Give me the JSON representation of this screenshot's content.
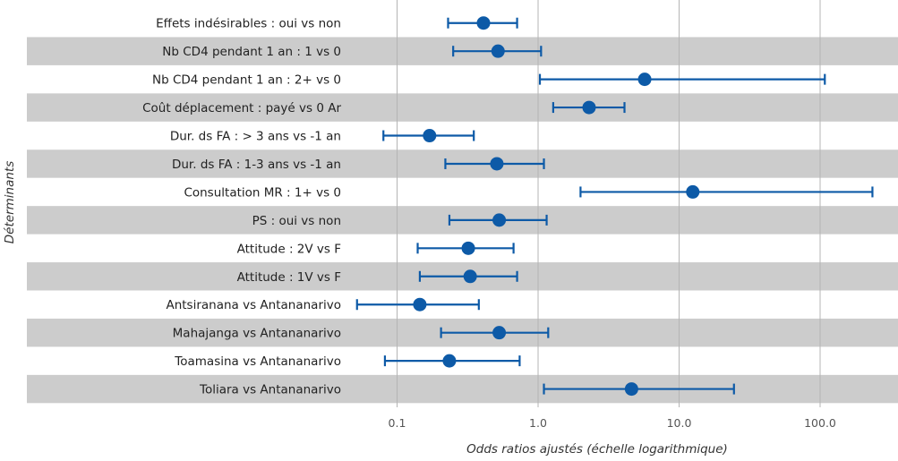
{
  "chart_data": {
    "type": "forest",
    "xlabel": "Odds ratios ajustés (échelle logarithmique)",
    "ylabel": "Déterminants",
    "xscale": "log",
    "xlim": [
      0.045,
      330
    ],
    "xticks": [
      0.1,
      1,
      10,
      100
    ],
    "xtick_labels": [
      "0.1",
      "1.0",
      "10.0",
      "100.0"
    ],
    "grid": true,
    "categories": [
      "Effets indésirables : oui vs non",
      "Nb CD4 pendant 1 an : 1 vs 0",
      "Nb CD4 pendant 1 an : 2+ vs 0",
      "Coût déplacement : payé vs 0 Ar",
      "Dur. ds FA : > 3 ans vs -1 an",
      "Dur. ds FA : 1-3 ans vs -1 an",
      "Consultation MR : 1+ vs 0",
      "PS : oui vs non",
      "Attitude : 2V vs F",
      "Attitude : 1V vs F",
      "Antsiranana vs Antananarivo",
      "Mahajanga vs Antananarivo",
      "Toamasina vs Antananarivo",
      "Toliara vs Antananarivo"
    ],
    "estimates": [
      0.41,
      0.52,
      5.7,
      2.3,
      0.17,
      0.51,
      12.5,
      0.53,
      0.32,
      0.33,
      0.145,
      0.53,
      0.235,
      4.6
    ],
    "lower": [
      0.23,
      0.25,
      1.03,
      1.28,
      0.08,
      0.22,
      2.0,
      0.235,
      0.14,
      0.145,
      0.052,
      0.205,
      0.082,
      1.1
    ],
    "upper": [
      0.71,
      1.05,
      108,
      4.1,
      0.35,
      1.1,
      235,
      1.15,
      0.67,
      0.71,
      0.38,
      1.18,
      0.74,
      24.5
    ],
    "colors": {
      "point": "#0d5aa7",
      "band": "#cccccc",
      "grid": "#b5b5b5"
    }
  }
}
